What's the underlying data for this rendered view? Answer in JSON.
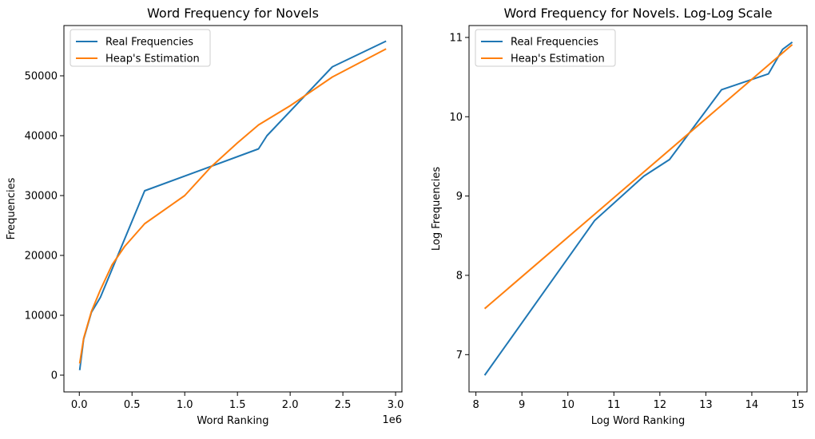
{
  "chart_data": [
    {
      "type": "line",
      "title": "Word Frequency for Novels",
      "xlabel": "Word Ranking",
      "ylabel": "Frequencies",
      "x_offset_label": "1e6",
      "xlim": [
        -0.146,
        3.06
      ],
      "ylim": [
        -2800,
        58400
      ],
      "x_ticks": [
        0.0,
        0.5,
        1.0,
        1.5,
        2.0,
        2.5,
        3.0
      ],
      "x_tick_labels": [
        "0.0",
        "0.5",
        "1.0",
        "1.5",
        "2.0",
        "2.5",
        "3.0"
      ],
      "y_ticks": [
        0,
        10000,
        20000,
        30000,
        40000,
        50000
      ],
      "y_tick_labels": [
        "0",
        "10000",
        "20000",
        "30000",
        "40000",
        "50000"
      ],
      "legend_position": "top-left",
      "grid": false,
      "series": [
        {
          "name": "Real Frequencies",
          "color": "#1f77b4",
          "x": [
            0.0036,
            0.041,
            0.115,
            0.2,
            0.62,
            1.7,
            1.78,
            2.4,
            2.91
          ],
          "y": [
            840,
            6000,
            10500,
            13000,
            30800,
            37800,
            40000,
            51500,
            55800
          ]
        },
        {
          "name": "Heap's Estimation",
          "color": "#ff7f0e",
          "x": [
            0.0036,
            0.041,
            0.115,
            0.2,
            0.31,
            0.43,
            0.62,
            1.0,
            1.25,
            1.5,
            1.7,
            2.0,
            2.4,
            2.91
          ],
          "y": [
            1950,
            6150,
            10650,
            14250,
            18400,
            21500,
            25300,
            30000,
            34800,
            38800,
            41800,
            45000,
            49800,
            54500
          ]
        }
      ]
    },
    {
      "type": "line",
      "title": "Word Frequency for Novels. Log-Log Scale",
      "xlabel": "Log Word Ranking",
      "ylabel": "Log Frequencies",
      "xlim": [
        7.85,
        15.2
      ],
      "ylim": [
        6.53,
        11.15
      ],
      "x_ticks": [
        8,
        9,
        10,
        11,
        12,
        13,
        14,
        15
      ],
      "x_tick_labels": [
        "8",
        "9",
        "10",
        "11",
        "12",
        "13",
        "14",
        "15"
      ],
      "y_ticks": [
        7,
        8,
        9,
        10,
        11
      ],
      "y_tick_labels": [
        "7",
        "8",
        "9",
        "10",
        "11"
      ],
      "legend_position": "top-left",
      "grid": false,
      "series": [
        {
          "name": "Real Frequencies",
          "color": "#1f77b4",
          "x": [
            8.19,
            10.58,
            11.65,
            12.21,
            13.34,
            14.36,
            14.67,
            14.88
          ],
          "y": [
            6.74,
            8.69,
            9.25,
            9.46,
            10.34,
            10.54,
            10.85,
            10.94
          ]
        },
        {
          "name": "Heap's Estimation",
          "color": "#ff7f0e",
          "x": [
            8.19,
            14.88
          ],
          "y": [
            7.58,
            10.91
          ]
        }
      ]
    }
  ]
}
